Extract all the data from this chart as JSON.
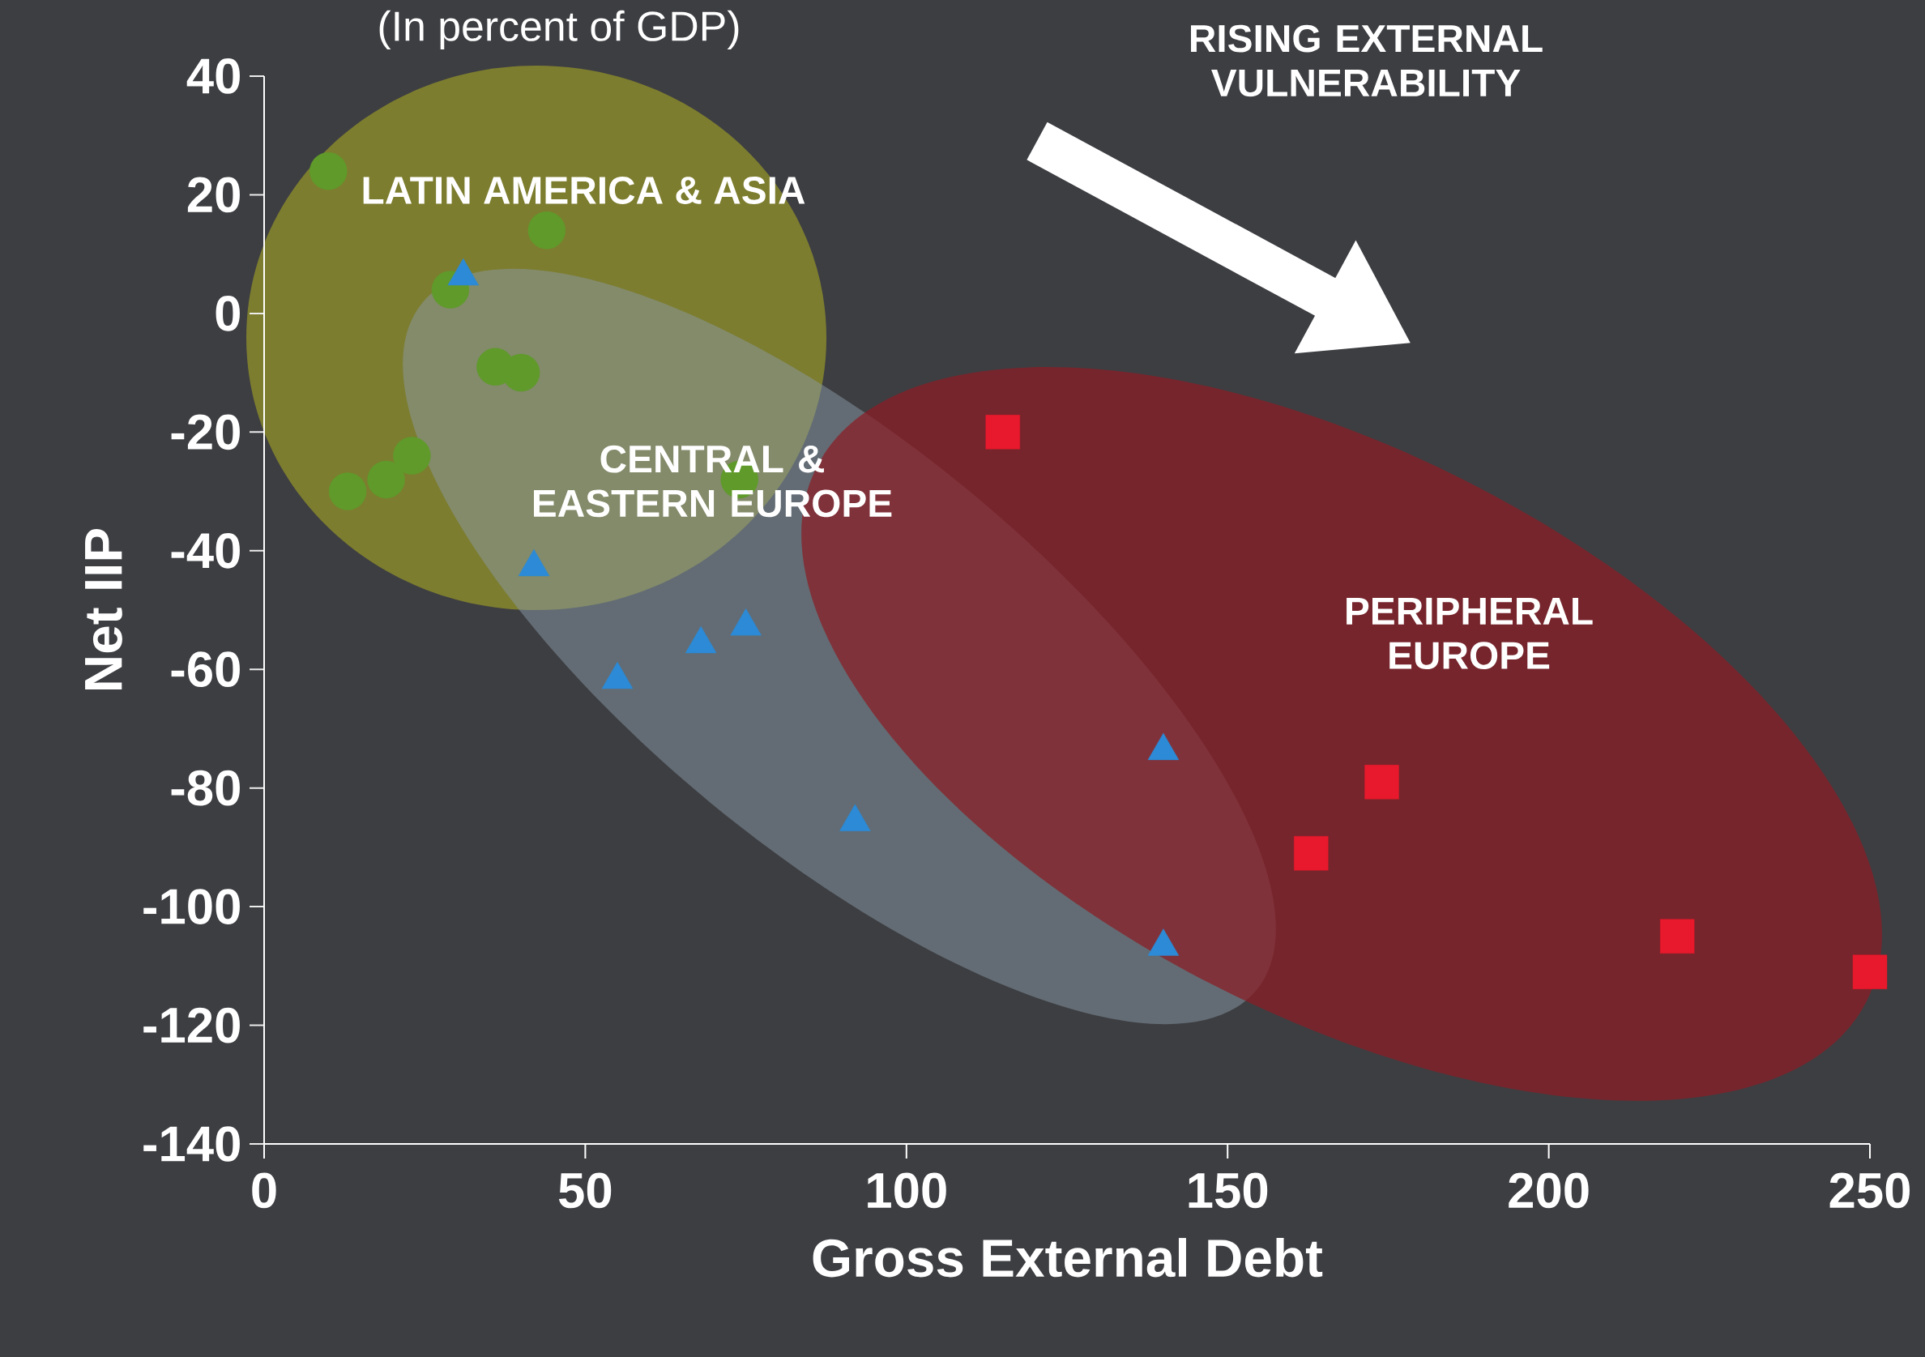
{
  "chart_data": {
    "type": "scatter",
    "subtitle": "(In percent of GDP)",
    "xlabel": "Gross External Debt",
    "ylabel": "Net IIP",
    "xlim": [
      0,
      250
    ],
    "ylim": [
      -140,
      40
    ],
    "xticks": [
      0,
      50,
      100,
      150,
      200,
      250
    ],
    "yticks": [
      -140,
      -120,
      -100,
      -80,
      -60,
      -40,
      -20,
      0,
      20,
      40
    ],
    "annotations": [
      "RISING EXTERNAL VULNERABILITY",
      "LATIN AMERICA & ASIA",
      "CENTRAL & EASTERN EUROPE",
      "PERIPHERAL EUROPE"
    ],
    "series": [
      {
        "color": "#5f9a2a",
        "marker": "circle",
        "x": [
          10,
          44,
          29,
          36,
          40,
          23,
          13,
          19,
          74
        ],
        "values": [
          24,
          14,
          4,
          -9,
          -10,
          -24,
          -30,
          -28,
          -28
        ]
      },
      {
        "color": "#2c8ad6",
        "marker": "triangle",
        "x": [
          31,
          42,
          55,
          68,
          75,
          92,
          140,
          140
        ],
        "values": [
          7,
          -42,
          -61,
          -55,
          -52,
          -85,
          -73,
          -106
        ]
      },
      {
        "color": "#e8192c",
        "marker": "square",
        "x": [
          115,
          174,
          163,
          220,
          250
        ],
        "values": [
          -20,
          -79,
          -91,
          -105,
          -111
        ]
      }
    ]
  }
}
